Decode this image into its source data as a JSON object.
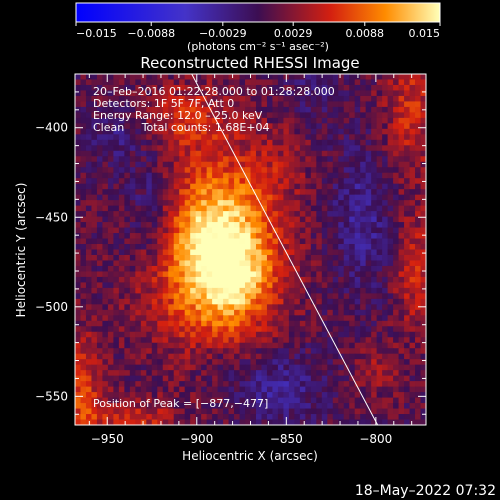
{
  "chart_data": {
    "type": "heatmap",
    "title": "Reconstructed RHESSI Image",
    "xlabel": "Heliocentric X (arcsec)",
    "ylabel": "Heliocentric Y (arcsec)",
    "xlim": [
      -968,
      -772
    ],
    "ylim": [
      -566,
      -370
    ],
    "x_ticks": [
      -950,
      -900,
      -850,
      -800
    ],
    "x_tick_labels": [
      "−950",
      "−900",
      "−850",
      "−800"
    ],
    "y_ticks": [
      -400,
      -450,
      -500,
      -550
    ],
    "y_tick_labels": [
      "−400",
      "−450",
      "−500",
      "−550"
    ],
    "colorbar": {
      "min": -0.015,
      "max": 0.015,
      "ticks": [
        -0.015,
        -0.0088,
        -0.0029,
        0.0029,
        0.0088,
        0.015
      ],
      "tick_labels": [
        "−0.015",
        "−0.0088",
        "−0.0029",
        "0.0029",
        "0.0088",
        "0.015"
      ],
      "unit_label": "(photons cm⁻² s⁻¹ asec⁻²)"
    },
    "annotations": {
      "time_range": "20–Feb–2016 01:22:28.000 to 01:28:28.000",
      "detectors": "Detectors: 1F 5F 7F, Att 0",
      "energy_range": "Energy Range: 12.0 – 25.0 keV",
      "method_counts": "Clean     Total counts: 1.68E+04",
      "peak_position": "Position of Peak = [−877,−477]"
    },
    "peak": [
      -877,
      -477
    ],
    "limb_line": [
      [
        -906,
        -364
      ],
      [
        -799,
        -566
      ]
    ],
    "image_sources": [
      {
        "x": -888,
        "y": -470,
        "sx": 22,
        "sy": 32,
        "amp": 0.0165
      },
      {
        "x": -875,
        "y": -485,
        "sx": 11,
        "sy": 12,
        "amp": 0.003
      },
      {
        "x": -905,
        "y": -395,
        "sx": 18,
        "sy": 14,
        "amp": 0.0045
      },
      {
        "x": -965,
        "y": -548,
        "sx": 9,
        "sy": 24,
        "amp": 0.006
      },
      {
        "x": -935,
        "y": -564,
        "sx": 18,
        "sy": 9,
        "amp": 0.0045
      },
      {
        "x": -780,
        "y": -390,
        "sx": 11,
        "sy": 26,
        "amp": 0.005
      },
      {
        "x": -778,
        "y": -480,
        "sx": 8,
        "sy": 22,
        "amp": 0.005
      },
      {
        "x": -855,
        "y": -420,
        "sx": 14,
        "sy": 16,
        "amp": 0.002
      },
      {
        "x": -800,
        "y": -535,
        "sx": 10,
        "sy": 12,
        "amp": 0.0025
      },
      {
        "x": -930,
        "y": -505,
        "sx": 14,
        "sy": 14,
        "amp": 0.0012
      },
      {
        "x": -855,
        "y": -545,
        "sx": 18,
        "sy": 14,
        "amp": -0.0045
      },
      {
        "x": -925,
        "y": -445,
        "sx": 10,
        "sy": 22,
        "amp": -0.004
      },
      {
        "x": -808,
        "y": -450,
        "sx": 12,
        "sy": 28,
        "amp": -0.004
      },
      {
        "x": -945,
        "y": -405,
        "sx": 10,
        "sy": 10,
        "amp": -0.003
      },
      {
        "x": -835,
        "y": -380,
        "sx": 10,
        "sy": 10,
        "amp": -0.0025
      },
      {
        "x": -888,
        "y": -530,
        "sx": 10,
        "sy": 8,
        "amp": -0.002
      }
    ]
  },
  "footer": {
    "timestamp": "18–May–2022 07:32"
  },
  "colors": {
    "background": "#000000",
    "foreground": "#ffffff"
  }
}
